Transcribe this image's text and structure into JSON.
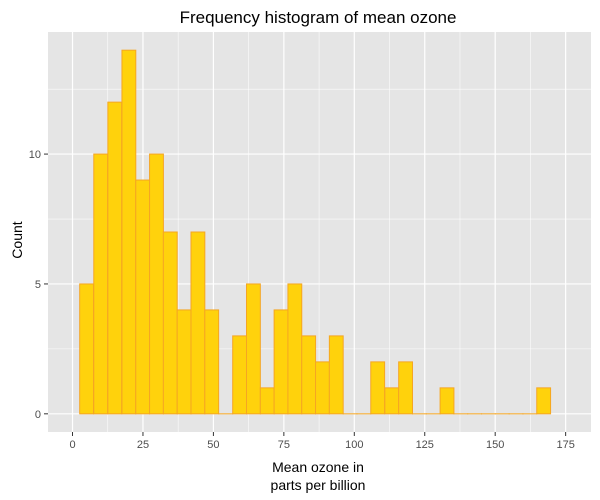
{
  "chart_data": {
    "type": "bar",
    "title": "Frequency histogram of mean ozone",
    "xlabel_lines": [
      "Mean ozone in",
      "parts per billion"
    ],
    "ylabel": "Count",
    "bin_width": 4.91,
    "bins": [
      {
        "x_center": 5.0,
        "count": 5
      },
      {
        "x_center": 10.0,
        "count": 10
      },
      {
        "x_center": 15.0,
        "count": 12
      },
      {
        "x_center": 20.0,
        "count": 14
      },
      {
        "x_center": 24.9,
        "count": 9
      },
      {
        "x_center": 29.8,
        "count": 10
      },
      {
        "x_center": 34.7,
        "count": 7
      },
      {
        "x_center": 39.6,
        "count": 4
      },
      {
        "x_center": 44.5,
        "count": 7
      },
      {
        "x_center": 49.4,
        "count": 4
      },
      {
        "x_center": 54.4,
        "count": 0
      },
      {
        "x_center": 59.3,
        "count": 3
      },
      {
        "x_center": 64.2,
        "count": 5
      },
      {
        "x_center": 69.1,
        "count": 1
      },
      {
        "x_center": 74.0,
        "count": 4
      },
      {
        "x_center": 78.9,
        "count": 5
      },
      {
        "x_center": 83.8,
        "count": 3
      },
      {
        "x_center": 88.7,
        "count": 2
      },
      {
        "x_center": 93.6,
        "count": 3
      },
      {
        "x_center": 98.5,
        "count": 0
      },
      {
        "x_center": 103.4,
        "count": 0
      },
      {
        "x_center": 108.3,
        "count": 2
      },
      {
        "x_center": 113.3,
        "count": 1
      },
      {
        "x_center": 118.2,
        "count": 2
      },
      {
        "x_center": 123.1,
        "count": 0
      },
      {
        "x_center": 128.0,
        "count": 0
      },
      {
        "x_center": 132.9,
        "count": 1
      },
      {
        "x_center": 137.8,
        "count": 0
      },
      {
        "x_center": 142.7,
        "count": 0
      },
      {
        "x_center": 147.6,
        "count": 0
      },
      {
        "x_center": 152.5,
        "count": 0
      },
      {
        "x_center": 157.4,
        "count": 0
      },
      {
        "x_center": 162.3,
        "count": 0
      },
      {
        "x_center": 167.2,
        "count": 1
      }
    ],
    "x_ticks": [
      0,
      25,
      50,
      75,
      100,
      125,
      150,
      175
    ],
    "y_ticks": [
      0,
      5,
      10
    ],
    "xlim": [
      -8.7,
      184.0
    ],
    "ylim": [
      -0.7,
      14.7
    ],
    "grid": true,
    "colors": {
      "panel_background": "#E5E5E5",
      "grid": "#FFFFFF",
      "bar_fill": "#FFD20C",
      "bar_outline": "#F5A623"
    }
  }
}
